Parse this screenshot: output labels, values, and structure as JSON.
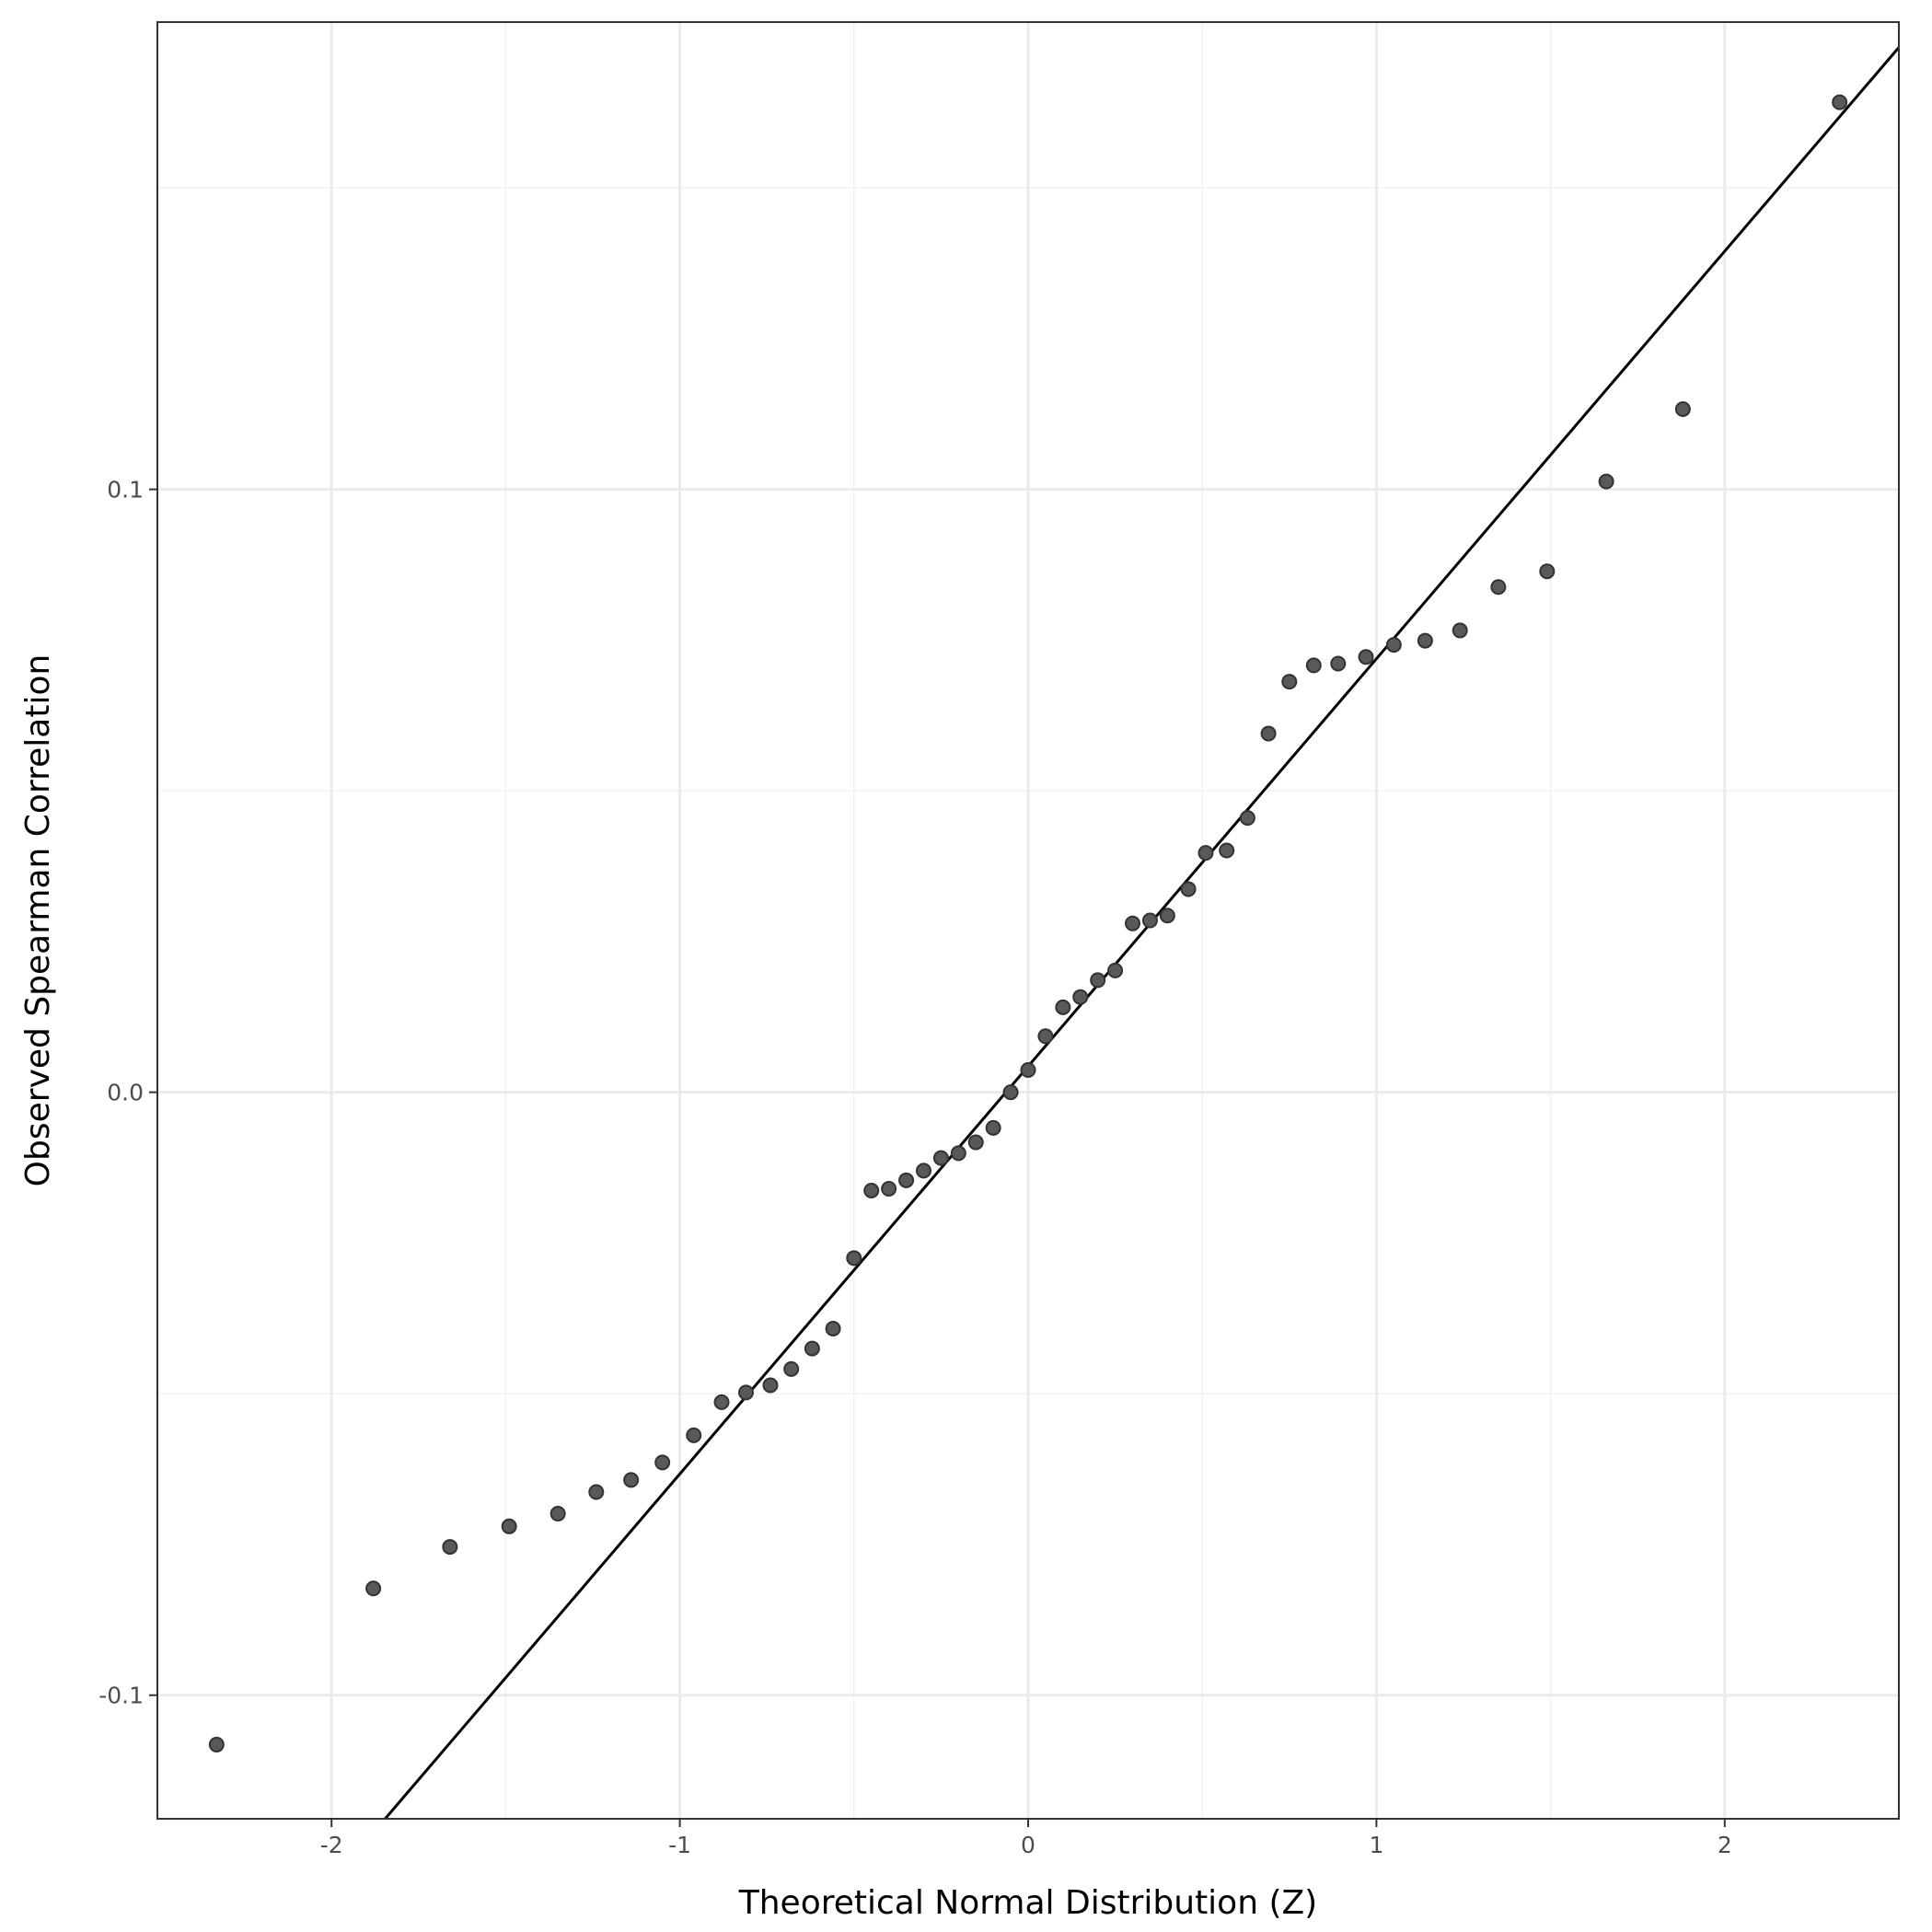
{
  "chart_data": {
    "type": "scatter",
    "title": "",
    "xlabel": "Theoretical Normal Distribution (Z)",
    "ylabel": "Observed Spearman Correlation",
    "xlim": [
      -2.5,
      2.5
    ],
    "ylim": [
      -0.1205,
      0.1775
    ],
    "x_ticks": [
      -2,
      -1,
      0,
      1,
      2
    ],
    "x_tick_labels": [
      "-2",
      "-1",
      "0",
      "1",
      "2"
    ],
    "y_ticks": [
      -0.1,
      0.0,
      0.1
    ],
    "y_tick_labels": [
      "-0.1",
      "0.0",
      "0.1"
    ],
    "x_minor_ticks": [
      -1.5,
      -0.5,
      0.5,
      1.5
    ],
    "y_minor_ticks": [
      -0.05,
      0.05,
      0.15
    ],
    "grid": true,
    "legend": "none",
    "point_color": "#595959",
    "line_color": "#000000",
    "reference_line": {
      "intercept": 0.0043,
      "slope": 0.0676
    },
    "points": [
      {
        "x": -2.33,
        "y": -0.1082
      },
      {
        "x": -1.88,
        "y": -0.0823
      },
      {
        "x": -1.66,
        "y": -0.0754
      },
      {
        "x": -1.49,
        "y": -0.072
      },
      {
        "x": -1.35,
        "y": -0.0699
      },
      {
        "x": -1.24,
        "y": -0.0663
      },
      {
        "x": -1.14,
        "y": -0.0643
      },
      {
        "x": -1.05,
        "y": -0.0614
      },
      {
        "x": -0.96,
        "y": -0.0569
      },
      {
        "x": -0.88,
        "y": -0.0514
      },
      {
        "x": -0.81,
        "y": -0.0498
      },
      {
        "x": -0.74,
        "y": -0.0486
      },
      {
        "x": -0.68,
        "y": -0.0459
      },
      {
        "x": -0.62,
        "y": -0.0425
      },
      {
        "x": -0.56,
        "y": -0.0392
      },
      {
        "x": -0.5,
        "y": -0.0275
      },
      {
        "x": -0.45,
        "y": -0.0163
      },
      {
        "x": -0.4,
        "y": -0.016
      },
      {
        "x": -0.35,
        "y": -0.0146
      },
      {
        "x": -0.3,
        "y": -0.013
      },
      {
        "x": -0.25,
        "y": -0.0109
      },
      {
        "x": -0.2,
        "y": -0.0101
      },
      {
        "x": -0.15,
        "y": -0.0083
      },
      {
        "x": -0.1,
        "y": -0.0059
      },
      {
        "x": -0.05,
        "y": 0.0
      },
      {
        "x": 0.0,
        "y": 0.0037
      },
      {
        "x": 0.05,
        "y": 0.0093
      },
      {
        "x": 0.1,
        "y": 0.0141
      },
      {
        "x": 0.15,
        "y": 0.0158
      },
      {
        "x": 0.2,
        "y": 0.0186
      },
      {
        "x": 0.25,
        "y": 0.0202
      },
      {
        "x": 0.3,
        "y": 0.028
      },
      {
        "x": 0.35,
        "y": 0.0285
      },
      {
        "x": 0.4,
        "y": 0.0293
      },
      {
        "x": 0.46,
        "y": 0.0337
      },
      {
        "x": 0.51,
        "y": 0.0397
      },
      {
        "x": 0.57,
        "y": 0.0401
      },
      {
        "x": 0.63,
        "y": 0.0455
      },
      {
        "x": 0.69,
        "y": 0.0595
      },
      {
        "x": 0.75,
        "y": 0.0681
      },
      {
        "x": 0.82,
        "y": 0.0708
      },
      {
        "x": 0.89,
        "y": 0.0711
      },
      {
        "x": 0.97,
        "y": 0.0722
      },
      {
        "x": 1.05,
        "y": 0.0742
      },
      {
        "x": 1.14,
        "y": 0.0749
      },
      {
        "x": 1.24,
        "y": 0.0766
      },
      {
        "x": 1.35,
        "y": 0.0838
      },
      {
        "x": 1.49,
        "y": 0.0864
      },
      {
        "x": 1.66,
        "y": 0.1013
      },
      {
        "x": 1.88,
        "y": 0.1133
      },
      {
        "x": 2.33,
        "y": 0.1642
      }
    ]
  }
}
